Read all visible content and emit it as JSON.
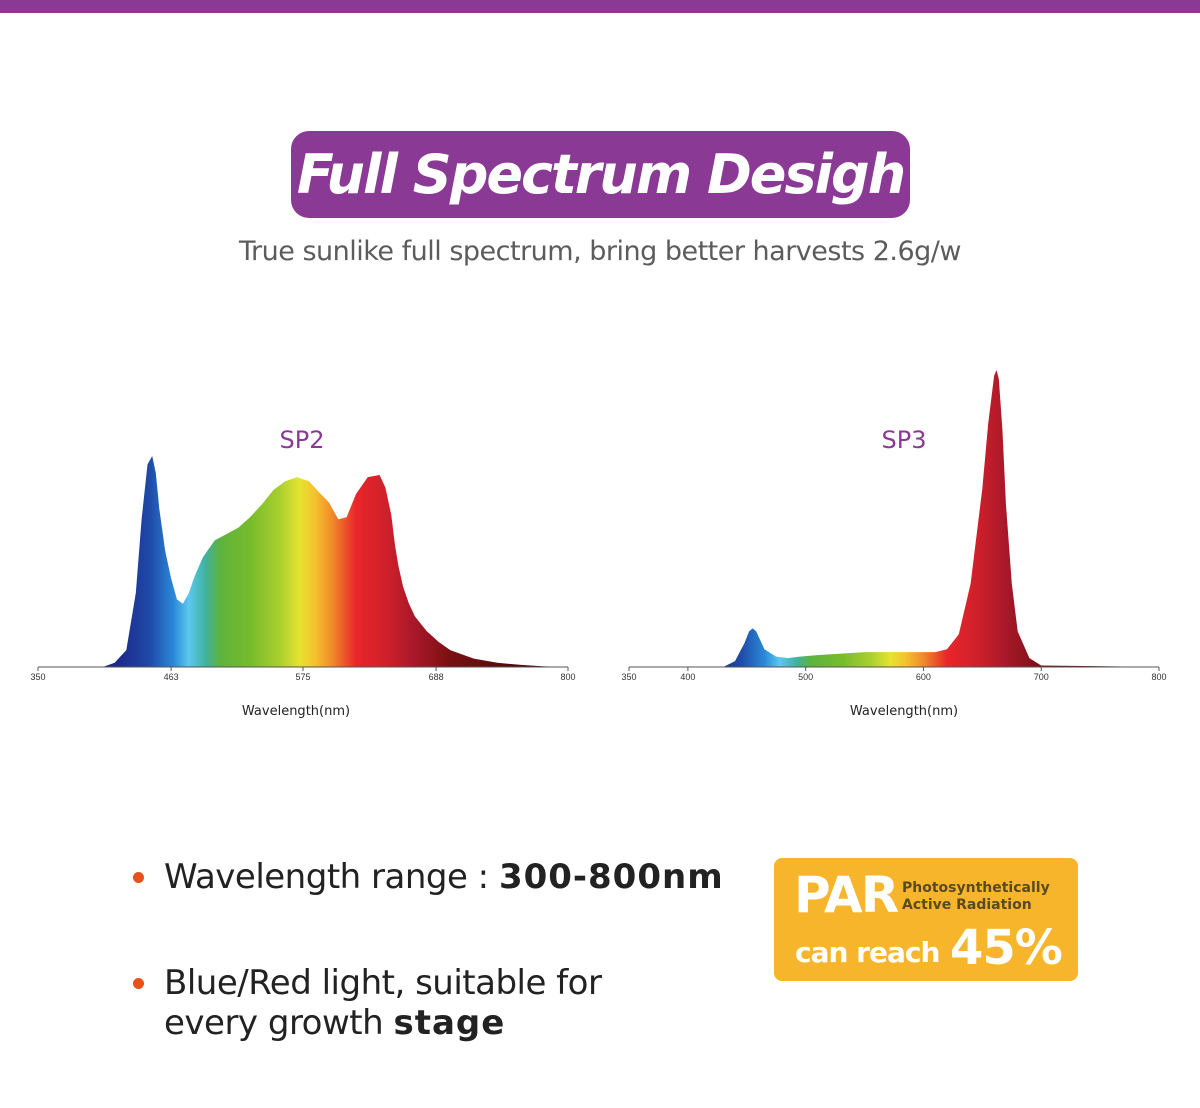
{
  "header": {
    "title": "Full Spectrum Desigh",
    "subtitle": "True sunlike full spectrum, bring better harvests 2.6g/w"
  },
  "colors": {
    "brand": "#8a3a94",
    "accent": "#f7b52b",
    "bullet": "#e8521a"
  },
  "chart_data": [
    {
      "type": "area",
      "title": "SP2",
      "xlabel": "Wavelength(nm)",
      "ylabel": "",
      "xlim": [
        350,
        800
      ],
      "ylim": [
        0,
        1
      ],
      "grid": false,
      "xticks": [
        "350",
        "463",
        "575",
        "688",
        "800"
      ],
      "xtick_values": [
        350,
        463,
        575,
        688,
        800
      ],
      "series": [
        {
          "x": [
            350,
            405,
            415,
            425,
            433,
            438,
            443,
            447,
            450,
            453,
            458,
            463,
            468,
            473,
            478,
            483,
            490,
            500,
            510,
            520,
            530,
            540,
            550,
            560,
            570,
            580,
            590,
            597,
            605,
            612,
            620,
            630,
            640,
            645,
            650,
            653,
            656,
            660,
            665,
            670,
            680,
            690,
            700,
            720,
            740,
            760,
            780,
            800
          ],
          "values": [
            0,
            0,
            0.02,
            0.08,
            0.35,
            0.7,
            0.96,
            1.0,
            0.92,
            0.75,
            0.55,
            0.42,
            0.32,
            0.3,
            0.35,
            0.43,
            0.52,
            0.6,
            0.63,
            0.66,
            0.71,
            0.77,
            0.84,
            0.88,
            0.9,
            0.88,
            0.82,
            0.78,
            0.7,
            0.71,
            0.82,
            0.9,
            0.91,
            0.85,
            0.72,
            0.58,
            0.48,
            0.38,
            0.3,
            0.24,
            0.17,
            0.12,
            0.08,
            0.04,
            0.02,
            0.01,
            0.003,
            0
          ]
        }
      ]
    },
    {
      "type": "area",
      "title": "SP3",
      "xlabel": "Wavelength(nm)",
      "ylabel": "",
      "xlim": [
        350,
        800
      ],
      "ylim": [
        0,
        1
      ],
      "grid": false,
      "xticks": [
        "350",
        "400",
        "500",
        "600",
        "700",
        "800"
      ],
      "xtick_values": [
        350,
        400,
        500,
        600,
        700,
        800
      ],
      "series": [
        {
          "x": [
            350,
            430,
            440,
            448,
            452,
            455,
            458,
            465,
            475,
            485,
            495,
            510,
            530,
            550,
            570,
            590,
            610,
            620,
            630,
            640,
            650,
            655,
            660,
            662,
            664,
            667,
            670,
            675,
            680,
            690,
            700,
            800
          ],
          "values": [
            0,
            0,
            0.02,
            0.08,
            0.12,
            0.13,
            0.12,
            0.06,
            0.035,
            0.03,
            0.035,
            0.04,
            0.045,
            0.05,
            0.05,
            0.05,
            0.05,
            0.06,
            0.11,
            0.28,
            0.6,
            0.82,
            0.98,
            1.0,
            0.97,
            0.8,
            0.55,
            0.28,
            0.12,
            0.03,
            0.005,
            0
          ]
        }
      ]
    }
  ],
  "bullets": {
    "item1_text": "Wavelength range :",
    "item1_value": "300-800nm",
    "item2_line1": "Blue/Red light, suitable for",
    "item2_line2": "every growth",
    "item2_tail": "stage"
  },
  "badge": {
    "par": "PAR",
    "desc_line1": "Photosynthetically",
    "desc_line2": "Active Radiation",
    "reach": "can reach",
    "percent": "45%"
  }
}
